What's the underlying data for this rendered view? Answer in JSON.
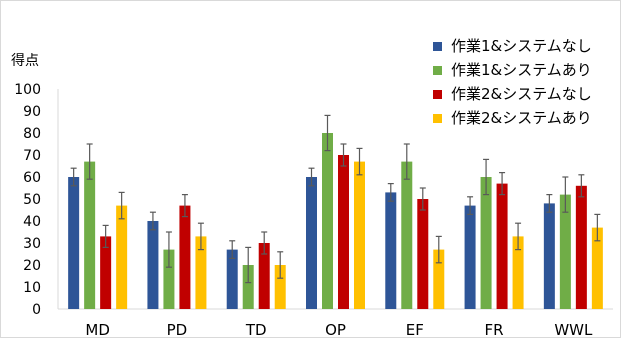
{
  "chart_data": {
    "type": "bar",
    "ylabel": "得点",
    "ylim": [
      0,
      100
    ],
    "yticks": [
      0,
      10,
      20,
      30,
      40,
      50,
      60,
      70,
      80,
      90,
      100
    ],
    "categories": [
      "MD",
      "PD",
      "TD",
      "OP",
      "EF",
      "FR",
      "WWL"
    ],
    "grid": false,
    "legend_position": "top-right",
    "series": [
      {
        "name": "作業1&システムなし",
        "color": "#2e5597",
        "values": [
          60,
          40,
          27,
          60,
          53,
          47,
          48
        ],
        "errors": [
          4,
          4,
          4,
          4,
          4,
          4,
          4
        ]
      },
      {
        "name": "作業1&システムあり",
        "color": "#70ad47",
        "values": [
          67,
          27,
          20,
          80,
          67,
          60,
          52
        ],
        "errors": [
          8,
          8,
          8,
          8,
          8,
          8,
          8
        ]
      },
      {
        "name": "作業2&システムなし",
        "color": "#c00000",
        "values": [
          33,
          47,
          30,
          70,
          50,
          57,
          56
        ],
        "errors": [
          5,
          5,
          5,
          5,
          5,
          5,
          5
        ]
      },
      {
        "name": "作業2&システムあり",
        "color": "#ffc000",
        "values": [
          47,
          33,
          20,
          67,
          27,
          33,
          37
        ],
        "errors": [
          6,
          6,
          6,
          6,
          6,
          6,
          6
        ]
      }
    ]
  }
}
